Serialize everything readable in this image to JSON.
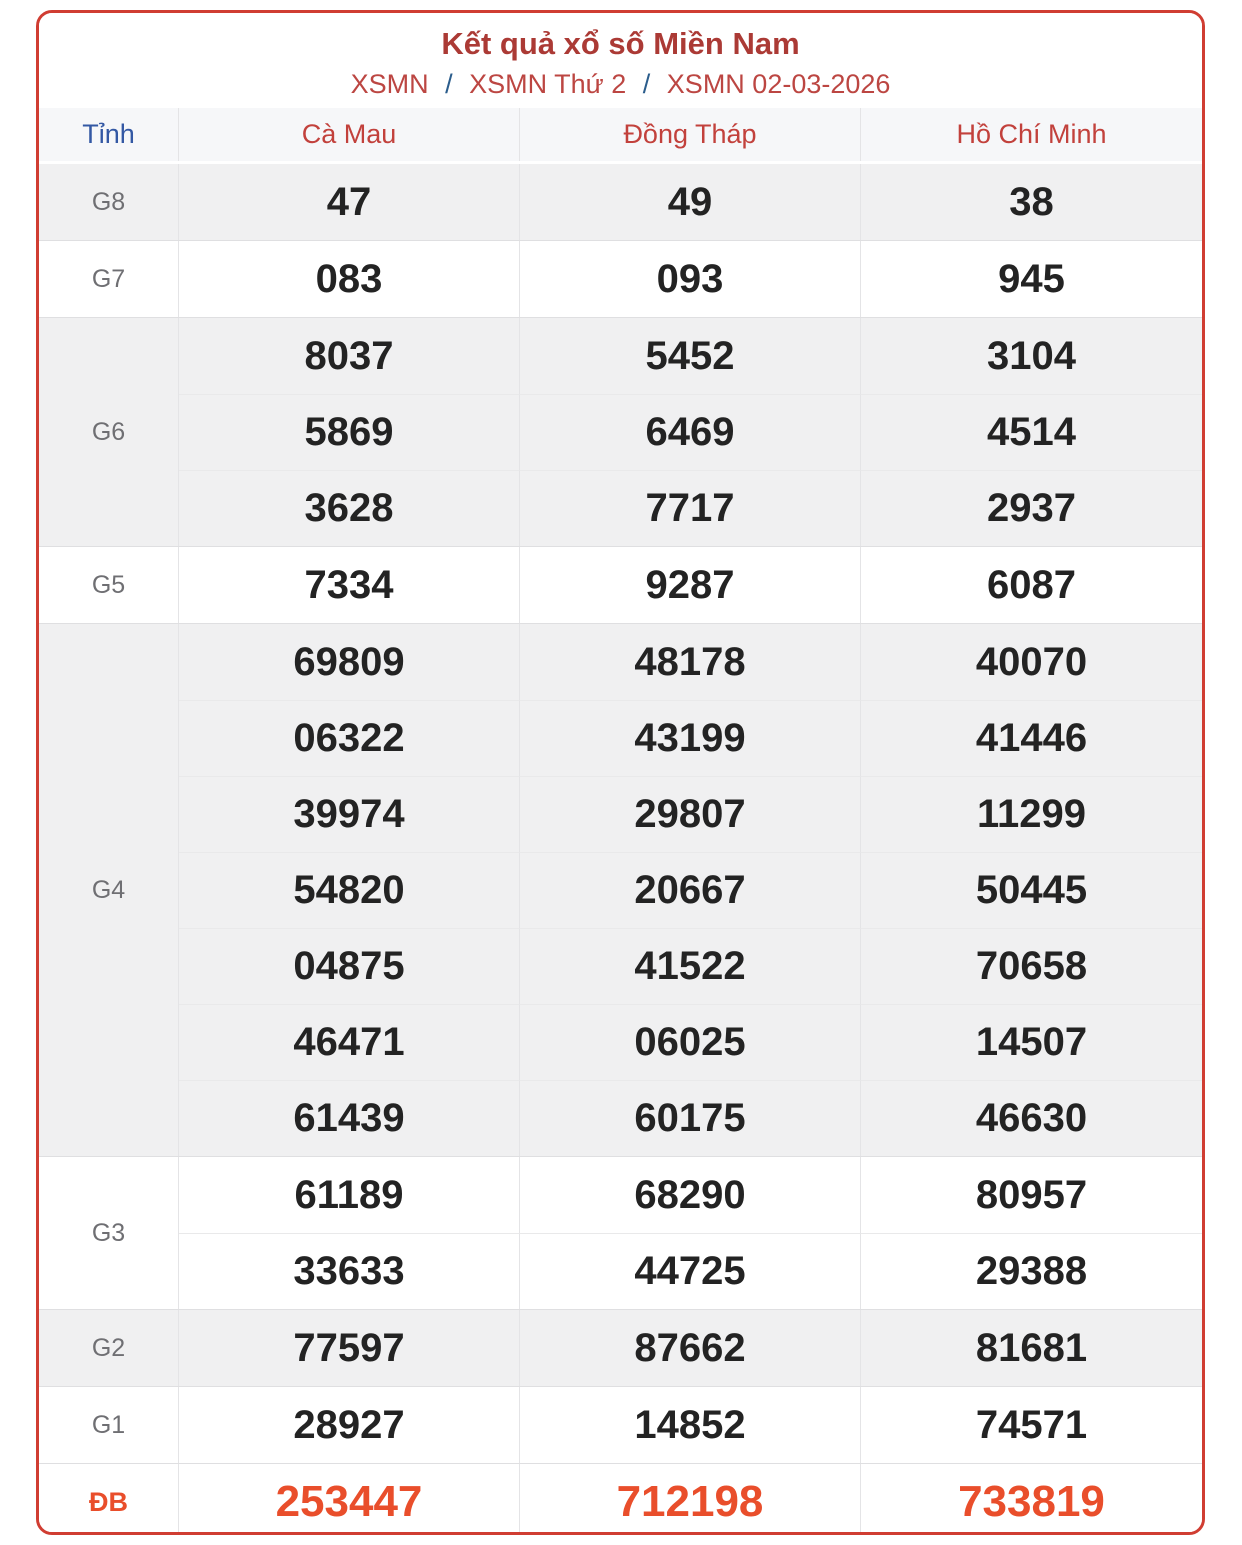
{
  "header": {
    "title": "Kết quả xổ số Miền Nam",
    "breadcrumb": [
      "XSMN",
      "XSMN Thứ 2",
      "XSMN 02-03-2026"
    ],
    "breadcrumb_separator": "/"
  },
  "table": {
    "province_header": "Tỉnh",
    "provinces": [
      "Cà Mau",
      "Đồng Tháp",
      "Hồ Chí Minh"
    ],
    "rows": [
      {
        "label": "G8",
        "shade": "gray",
        "special": false,
        "values": [
          [
            "47"
          ],
          [
            "49"
          ],
          [
            "38"
          ]
        ]
      },
      {
        "label": "G7",
        "shade": "white",
        "special": false,
        "values": [
          [
            "083"
          ],
          [
            "093"
          ],
          [
            "945"
          ]
        ]
      },
      {
        "label": "G6",
        "shade": "gray",
        "special": false,
        "values": [
          [
            "8037",
            "5869",
            "3628"
          ],
          [
            "5452",
            "6469",
            "7717"
          ],
          [
            "3104",
            "4514",
            "2937"
          ]
        ]
      },
      {
        "label": "G5",
        "shade": "white",
        "special": false,
        "values": [
          [
            "7334"
          ],
          [
            "9287"
          ],
          [
            "6087"
          ]
        ]
      },
      {
        "label": "G4",
        "shade": "gray",
        "special": false,
        "values": [
          [
            "69809",
            "06322",
            "39974",
            "54820",
            "04875",
            "46471",
            "61439"
          ],
          [
            "48178",
            "43199",
            "29807",
            "20667",
            "41522",
            "06025",
            "60175"
          ],
          [
            "40070",
            "41446",
            "11299",
            "50445",
            "70658",
            "14507",
            "46630"
          ]
        ]
      },
      {
        "label": "G3",
        "shade": "white",
        "special": false,
        "values": [
          [
            "61189",
            "33633"
          ],
          [
            "68290",
            "44725"
          ],
          [
            "80957",
            "29388"
          ]
        ]
      },
      {
        "label": "G2",
        "shade": "gray",
        "special": false,
        "values": [
          [
            "77597"
          ],
          [
            "87662"
          ],
          [
            "81681"
          ]
        ]
      },
      {
        "label": "G1",
        "shade": "white",
        "special": false,
        "values": [
          [
            "28927"
          ],
          [
            "14852"
          ],
          [
            "74571"
          ]
        ]
      },
      {
        "label": "ĐB",
        "shade": "white",
        "special": true,
        "values": [
          [
            "253447"
          ],
          [
            "712198"
          ],
          [
            "733819"
          ]
        ]
      }
    ]
  },
  "colors": {
    "card_border_red": "#d03d32",
    "title_red": "#ab3a35",
    "breadcrumb_red": "#bc4642",
    "breadcrumb_separator_blue": "#2b5d8c",
    "province_header_blue": "#3358a4",
    "province_name_red": "#c2413c",
    "value_dark": "#232323",
    "special_orange": "#e94e2b",
    "shade_gray": "#f0f0f1",
    "head_gray": "#f6f7f9"
  }
}
